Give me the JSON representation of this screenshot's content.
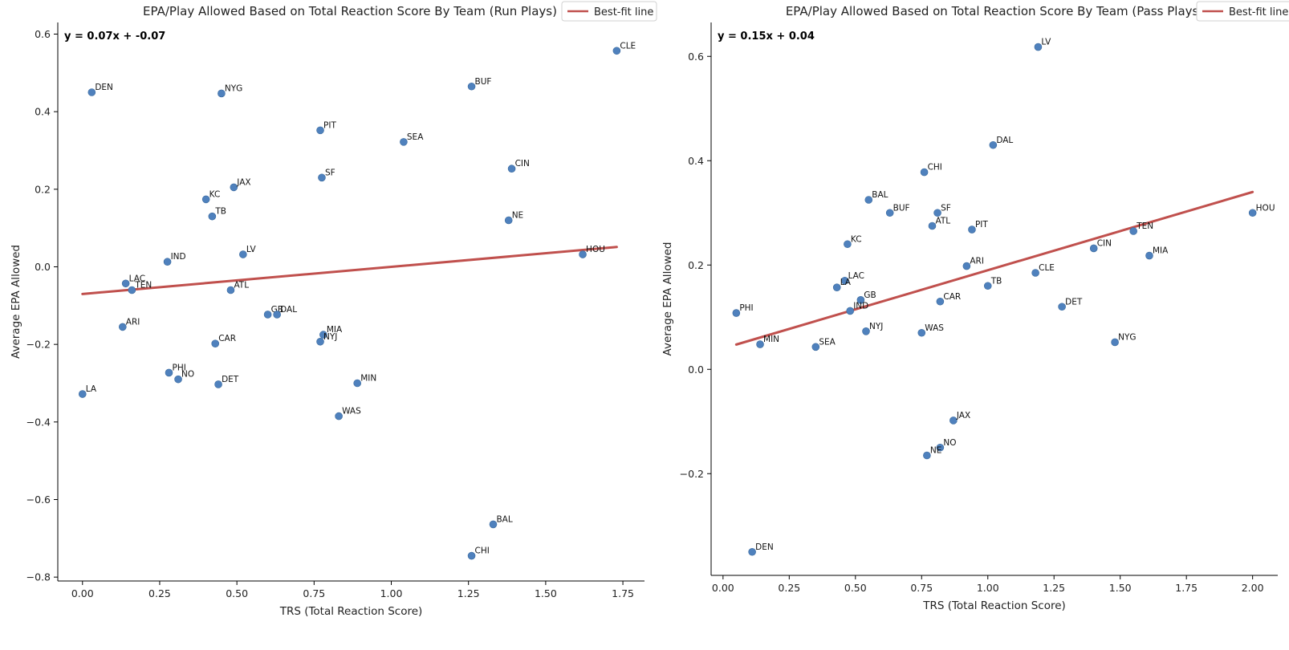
{
  "chart_data": [
    {
      "type": "scatter",
      "title": "EPA/Play Allowed Based on Total Reaction Score By Team (Run Plays)",
      "xlabel": "TRS (Total Reaction Score)",
      "ylabel": "Average EPA Allowed",
      "xlim": [
        -0.08,
        1.82
      ],
      "ylim": [
        -0.81,
        0.63
      ],
      "xticks": [
        0.0,
        0.25,
        0.5,
        0.75,
        1.0,
        1.25,
        1.5,
        1.75
      ],
      "xtick_labels": [
        "0.00",
        "0.25",
        "0.50",
        "0.75",
        "1.00",
        "1.25",
        "1.50",
        "1.75"
      ],
      "yticks": [
        -0.8,
        -0.6,
        -0.4,
        -0.2,
        0.0,
        0.2,
        0.4,
        0.6
      ],
      "ytick_labels": [
        "−0.8",
        "−0.6",
        "−0.4",
        "−0.2",
        "0.0",
        "0.2",
        "0.4",
        "0.6"
      ],
      "equation": "y = 0.07x + -0.07",
      "fit": {
        "slope": 0.07,
        "intercept": -0.07,
        "x_range": [
          0.0,
          1.73
        ]
      },
      "legend": {
        "label": "Best-fit line",
        "position": "top-right"
      },
      "grid": false,
      "point_color": "#4f81bd",
      "line_color": "#c0504d",
      "points": [
        {
          "label": "CLE",
          "x": 1.73,
          "y": 0.557
        },
        {
          "label": "DEN",
          "x": 0.03,
          "y": 0.45
        },
        {
          "label": "NYG",
          "x": 0.45,
          "y": 0.447
        },
        {
          "label": "BUF",
          "x": 1.26,
          "y": 0.465
        },
        {
          "label": "PIT",
          "x": 0.77,
          "y": 0.352
        },
        {
          "label": "SEA",
          "x": 1.04,
          "y": 0.322
        },
        {
          "label": "SF",
          "x": 0.775,
          "y": 0.23
        },
        {
          "label": "CIN",
          "x": 1.39,
          "y": 0.253
        },
        {
          "label": "JAX",
          "x": 0.49,
          "y": 0.205
        },
        {
          "label": "KC",
          "x": 0.4,
          "y": 0.174
        },
        {
          "label": "TB",
          "x": 0.42,
          "y": 0.13
        },
        {
          "label": "NE",
          "x": 1.38,
          "y": 0.12
        },
        {
          "label": "LV",
          "x": 0.52,
          "y": 0.032
        },
        {
          "label": "HOU",
          "x": 1.62,
          "y": 0.032
        },
        {
          "label": "IND",
          "x": 0.275,
          "y": 0.013
        },
        {
          "label": "LAC",
          "x": 0.14,
          "y": -0.043
        },
        {
          "label": "TEN",
          "x": 0.16,
          "y": -0.06
        },
        {
          "label": "ATL",
          "x": 0.48,
          "y": -0.06
        },
        {
          "label": "GB",
          "x": 0.6,
          "y": -0.123
        },
        {
          "label": "DAL",
          "x": 0.63,
          "y": -0.123
        },
        {
          "label": "ARI",
          "x": 0.13,
          "y": -0.155
        },
        {
          "label": "MIA",
          "x": 0.78,
          "y": -0.175
        },
        {
          "label": "NYJ",
          "x": 0.77,
          "y": -0.193
        },
        {
          "label": "CAR",
          "x": 0.43,
          "y": -0.198
        },
        {
          "label": "PHI",
          "x": 0.28,
          "y": -0.273
        },
        {
          "label": "NO",
          "x": 0.31,
          "y": -0.29
        },
        {
          "label": "DET",
          "x": 0.44,
          "y": -0.303
        },
        {
          "label": "MIN",
          "x": 0.89,
          "y": -0.3
        },
        {
          "label": "LA",
          "x": 0.0,
          "y": -0.328
        },
        {
          "label": "WAS",
          "x": 0.83,
          "y": -0.385
        },
        {
          "label": "BAL",
          "x": 1.33,
          "y": -0.664
        },
        {
          "label": "CHI",
          "x": 1.26,
          "y": -0.745
        }
      ]
    },
    {
      "type": "scatter",
      "title": "EPA/Play Allowed Based on Total Reaction Score By Team (Pass Plays)",
      "xlabel": "TRS (Total Reaction Score)",
      "ylabel": "Average EPA Allowed",
      "xlim": [
        -0.045,
        2.095
      ],
      "ylim": [
        -0.395,
        0.665
      ],
      "xticks": [
        0.0,
        0.25,
        0.5,
        0.75,
        1.0,
        1.25,
        1.5,
        1.75,
        2.0
      ],
      "xtick_labels": [
        "0.00",
        "0.25",
        "0.50",
        "0.75",
        "1.00",
        "1.25",
        "1.50",
        "1.75",
        "2.00"
      ],
      "yticks": [
        -0.2,
        0.0,
        0.2,
        0.4,
        0.6
      ],
      "ytick_labels": [
        "−0.2",
        "0.0",
        "0.2",
        "0.4",
        "0.6"
      ],
      "equation": "y = 0.15x + 0.04",
      "fit": {
        "slope": 0.15,
        "intercept": 0.04,
        "x_range": [
          0.05,
          2.0
        ]
      },
      "legend": {
        "label": "Best-fit line",
        "position": "top-right"
      },
      "grid": false,
      "point_color": "#4f81bd",
      "line_color": "#c0504d",
      "points": [
        {
          "label": "LV",
          "x": 1.19,
          "y": 0.618
        },
        {
          "label": "DAL",
          "x": 1.02,
          "y": 0.43
        },
        {
          "label": "CHI",
          "x": 0.76,
          "y": 0.378
        },
        {
          "label": "BAL",
          "x": 0.55,
          "y": 0.325
        },
        {
          "label": "SF",
          "x": 0.81,
          "y": 0.3
        },
        {
          "label": "BUF",
          "x": 0.63,
          "y": 0.3
        },
        {
          "label": "HOU",
          "x": 2.0,
          "y": 0.3
        },
        {
          "label": "ATL",
          "x": 0.79,
          "y": 0.275
        },
        {
          "label": "PIT",
          "x": 0.94,
          "y": 0.268
        },
        {
          "label": "TEN",
          "x": 1.55,
          "y": 0.265
        },
        {
          "label": "KC",
          "x": 0.47,
          "y": 0.24
        },
        {
          "label": "CIN",
          "x": 1.4,
          "y": 0.232
        },
        {
          "label": "MIA",
          "x": 1.61,
          "y": 0.218
        },
        {
          "label": "ARI",
          "x": 0.92,
          "y": 0.198
        },
        {
          "label": "CLE",
          "x": 1.18,
          "y": 0.185
        },
        {
          "label": "LAC",
          "x": 0.46,
          "y": 0.17
        },
        {
          "label": "TB",
          "x": 1.0,
          "y": 0.16
        },
        {
          "label": "LA",
          "x": 0.43,
          "y": 0.157
        },
        {
          "label": "GB",
          "x": 0.52,
          "y": 0.133
        },
        {
          "label": "CAR",
          "x": 0.82,
          "y": 0.13
        },
        {
          "label": "DET",
          "x": 1.28,
          "y": 0.12
        },
        {
          "label": "IND",
          "x": 0.48,
          "y": 0.112
        },
        {
          "label": "PHI",
          "x": 0.05,
          "y": 0.108
        },
        {
          "label": "NYJ",
          "x": 0.54,
          "y": 0.073
        },
        {
          "label": "WAS",
          "x": 0.75,
          "y": 0.07
        },
        {
          "label": "NYG",
          "x": 1.48,
          "y": 0.052
        },
        {
          "label": "MIN",
          "x": 0.14,
          "y": 0.048
        },
        {
          "label": "SEA",
          "x": 0.35,
          "y": 0.043
        },
        {
          "label": "JAX",
          "x": 0.87,
          "y": -0.098
        },
        {
          "label": "NO",
          "x": 0.82,
          "y": -0.15
        },
        {
          "label": "NE",
          "x": 0.77,
          "y": -0.165
        },
        {
          "label": "DEN",
          "x": 0.11,
          "y": -0.35
        }
      ]
    }
  ]
}
